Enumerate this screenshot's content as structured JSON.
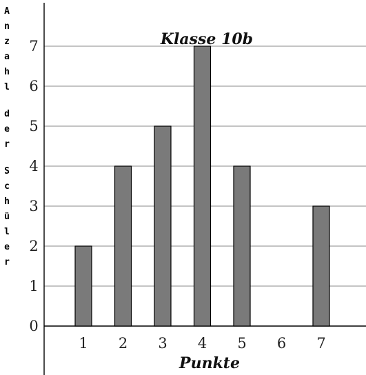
{
  "chart_data": {
    "type": "bar",
    "title": "Klasse 10b",
    "xlabel": "Punkte",
    "ylabel": "Anzahl der Schüler",
    "categories": [
      "1",
      "2",
      "3",
      "4",
      "5",
      "6",
      "7"
    ],
    "values": [
      2,
      4,
      5,
      7,
      4,
      0,
      3
    ],
    "ylim": [
      0,
      7
    ],
    "yticks": [
      "0",
      "1",
      "2",
      "3",
      "4",
      "5",
      "6",
      "7"
    ],
    "grid": true,
    "colors": {
      "bar": "#7a7a7a",
      "bar_edge": "#000000",
      "grid": "#8a8a8a"
    }
  }
}
